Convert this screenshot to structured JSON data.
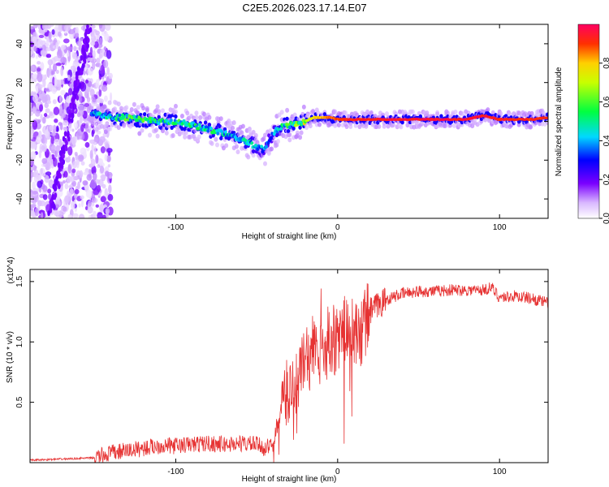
{
  "title": "C2E5.2026.023.17.14.E07",
  "colors": {
    "snr_line": "#e63232",
    "axis": "#000000"
  },
  "chart_data": [
    {
      "type": "heatmap",
      "xlabel": "Height of straight line (km)",
      "ylabel": "Frequency (Hz)",
      "xlim": [
        -190,
        130
      ],
      "ylim": [
        -50,
        50
      ],
      "xticks": [
        -100,
        0,
        100
      ],
      "xtick_labels": [
        "-100",
        "0",
        "100"
      ],
      "yticks": [
        -40,
        -20,
        0,
        20,
        40
      ],
      "ytick_labels": [
        "-40",
        "-20",
        "0",
        "20",
        "40"
      ],
      "colorbar": {
        "label": "Normalized spectral amplitude",
        "range": [
          0,
          1
        ],
        "ticks": [
          0.0,
          0.2,
          0.4,
          0.6,
          0.8
        ],
        "tick_labels": [
          "0.0",
          "0.2",
          "0.4",
          "0.6",
          "0.8"
        ]
      },
      "ridge": {
        "x": [
          -150,
          -140,
          -130,
          -120,
          -110,
          -100,
          -90,
          -80,
          -70,
          -60,
          -50,
          -45,
          -40,
          -35,
          -30,
          -25,
          -20,
          -15,
          -10,
          -5,
          0,
          10,
          20,
          40,
          60,
          80,
          90,
          100,
          110,
          120,
          130
        ],
        "y": [
          4,
          2,
          2,
          1,
          0,
          0,
          -2,
          -4,
          -6,
          -9,
          -13,
          -15,
          -6,
          -3,
          -2,
          -1,
          0,
          2,
          2,
          2,
          1,
          1,
          1,
          1,
          1,
          1,
          3,
          1,
          1,
          1,
          2
        ],
        "amplitude": [
          0.4,
          0.45,
          0.5,
          0.5,
          0.45,
          0.5,
          0.45,
          0.45,
          0.45,
          0.45,
          0.4,
          0.35,
          0.35,
          0.45,
          0.5,
          0.55,
          0.7,
          0.8,
          0.85,
          0.9,
          0.95,
          0.97,
          0.98,
          0.99,
          1.0,
          0.99,
          0.98,
          0.97,
          0.97,
          0.96,
          0.95
        ]
      }
    },
    {
      "type": "line",
      "xlabel": "Height of straight line (km)",
      "ylabel": "SNR (10 * v/v)",
      "y_multiplier": "(x10^4)",
      "xlim": [
        -190,
        130
      ],
      "ylim": [
        0,
        1.6
      ],
      "xticks": [
        -100,
        0,
        100
      ],
      "xtick_labels": [
        "-100",
        "0",
        "100"
      ],
      "yticks": [
        0.5,
        1.0,
        1.5
      ],
      "ytick_labels": [
        "0.5",
        "1.0",
        "1.5"
      ],
      "series": [
        {
          "name": "SNR",
          "x": [
            -190,
            -170,
            -150,
            -140,
            -130,
            -120,
            -110,
            -100,
            -90,
            -80,
            -70,
            -60,
            -50,
            -45,
            -40,
            -35,
            -30,
            -25,
            -20,
            -15,
            -10,
            -5,
            0,
            5,
            10,
            15,
            20,
            30,
            40,
            50,
            60,
            70,
            80,
            90,
            95,
            100,
            110,
            120,
            130
          ],
          "y": [
            0.02,
            0.03,
            0.04,
            0.08,
            0.1,
            0.12,
            0.14,
            0.14,
            0.15,
            0.16,
            0.15,
            0.16,
            0.15,
            0.12,
            0.15,
            0.45,
            0.6,
            0.7,
            0.85,
            0.95,
            0.85,
            1.05,
            1.0,
            1.1,
            1.05,
            1.1,
            1.25,
            1.35,
            1.4,
            1.42,
            1.42,
            1.43,
            1.43,
            1.43,
            1.45,
            1.37,
            1.38,
            1.36,
            1.32
          ]
        }
      ]
    }
  ]
}
